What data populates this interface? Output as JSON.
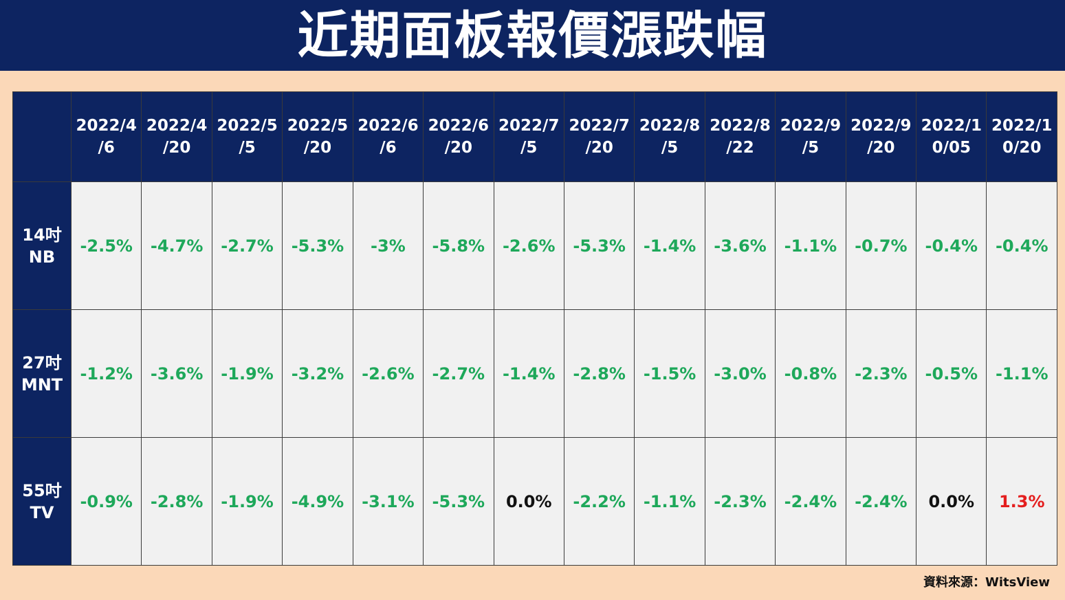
{
  "title": "近期面板報價漲跌幅",
  "dates": [
    [
      "2022/4",
      "/6"
    ],
    [
      "2022/4",
      "/20"
    ],
    [
      "2022/5",
      "/5"
    ],
    [
      "2022/5",
      "/20"
    ],
    [
      "2022/6",
      "/6"
    ],
    [
      "2022/6",
      "/20"
    ],
    [
      "2022/7",
      "/5"
    ],
    [
      "2022/7",
      "/20"
    ],
    [
      "2022/8",
      "/5"
    ],
    [
      "2022/8",
      "/22"
    ],
    [
      "2022/9",
      "/5"
    ],
    [
      "2022/9",
      "/20"
    ],
    [
      "2022/1",
      "0/05"
    ],
    [
      "2022/1",
      "0/20"
    ]
  ],
  "rows": [
    {
      "label_line1": "14吋",
      "label_line2": "NB",
      "values": [
        "-2.5%",
        "-4.7%",
        "-2.7%",
        "-5.3%",
        "-3%",
        "-5.8%",
        "-2.6%",
        "-5.3%",
        "-1.4%",
        "-3.6%",
        "-1.1%",
        "-0.7%",
        "-0.4%",
        "-0.4%"
      ]
    },
    {
      "label_line1": "27吋",
      "label_line2": "MNT",
      "values": [
        "-1.2%",
        "-3.6%",
        "-1.9%",
        "-3.2%",
        "-2.6%",
        "-2.7%",
        "-1.4%",
        "-2.8%",
        "-1.5%",
        "-3.0%",
        "-0.8%",
        "-2.3%",
        "-0.5%",
        "-1.1%"
      ]
    },
    {
      "label_line1": "55吋",
      "label_line2": "TV",
      "values": [
        "-0.9%",
        "-2.8%",
        "-1.9%",
        "-4.9%",
        "-3.1%",
        "-5.3%",
        "0.0%",
        "-2.2%",
        "-1.1%",
        "-2.3%",
        "-2.4%",
        "-2.4%",
        "0.0%",
        "1.3%"
      ]
    }
  ],
  "source": "資料來源：WitsView",
  "colors": {
    "header_bg": "#0d2461",
    "page_bg": "#fbd8b8",
    "negative": "#1ea85a",
    "positive": "#e41e1e",
    "neutral": "#111111",
    "cell_bg": "#f1f1f1"
  }
}
